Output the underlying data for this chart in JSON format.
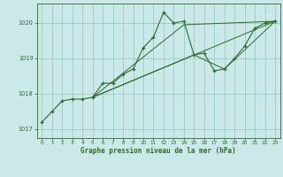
{
  "title": "Graphe pression niveau de la mer (hPa)",
  "bg_color": "#cce8e8",
  "grid_color": "#99cccc",
  "line_color": "#2d6a2d",
  "xlim": [
    -0.5,
    23.5
  ],
  "ylim": [
    1016.75,
    1020.55
  ],
  "yticks": [
    1017,
    1018,
    1019,
    1020
  ],
  "xticks": [
    0,
    1,
    2,
    3,
    4,
    5,
    6,
    7,
    8,
    9,
    10,
    11,
    12,
    13,
    14,
    15,
    16,
    17,
    18,
    19,
    20,
    21,
    22,
    23
  ],
  "main_series": [
    [
      0,
      1017.2
    ],
    [
      1,
      1017.5
    ],
    [
      2,
      1017.8
    ],
    [
      3,
      1017.85
    ],
    [
      4,
      1017.85
    ],
    [
      5,
      1017.9
    ],
    [
      6,
      1018.3
    ],
    [
      7,
      1018.3
    ],
    [
      8,
      1018.55
    ],
    [
      9,
      1018.7
    ],
    [
      10,
      1019.3
    ],
    [
      11,
      1019.6
    ],
    [
      12,
      1020.3
    ],
    [
      13,
      1020.0
    ],
    [
      14,
      1020.05
    ],
    [
      15,
      1019.1
    ],
    [
      16,
      1019.15
    ],
    [
      17,
      1018.65
    ],
    [
      18,
      1018.7
    ],
    [
      19,
      1019.0
    ],
    [
      20,
      1019.35
    ],
    [
      21,
      1019.85
    ],
    [
      22,
      1020.0
    ],
    [
      23,
      1020.05
    ]
  ],
  "straight_lines": [
    [
      [
        5,
        1017.9
      ],
      [
        23,
        1020.05
      ]
    ],
    [
      [
        5,
        1017.9
      ],
      [
        14,
        1019.95
      ],
      [
        23,
        1020.05
      ]
    ],
    [
      [
        5,
        1017.9
      ],
      [
        15,
        1019.1
      ],
      [
        18,
        1018.7
      ],
      [
        23,
        1020.05
      ]
    ]
  ]
}
